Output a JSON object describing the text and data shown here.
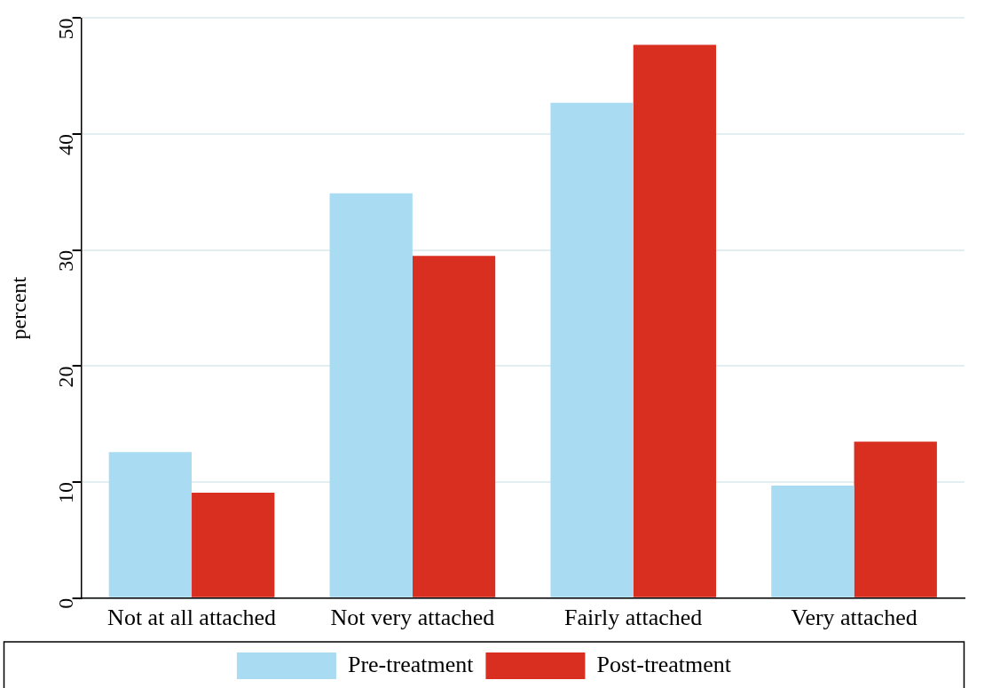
{
  "chart_data": {
    "type": "bar",
    "ylabel": "percent",
    "categories": [
      "Not at all attached",
      "Not very attached",
      "Fairly attached",
      "Very attached"
    ],
    "series": [
      {
        "name": "Pre-treatment",
        "color": "#a9dcf2",
        "values": [
          12.6,
          34.9,
          42.7,
          9.7
        ]
      },
      {
        "name": "Post-treatment",
        "color": "#d92f20",
        "values": [
          9.1,
          29.5,
          47.7,
          13.5
        ]
      }
    ],
    "ylim": [
      0,
      50
    ],
    "yticks": [
      0,
      10,
      20,
      30,
      40,
      50
    ],
    "grid": "y",
    "legend": "bottom"
  }
}
